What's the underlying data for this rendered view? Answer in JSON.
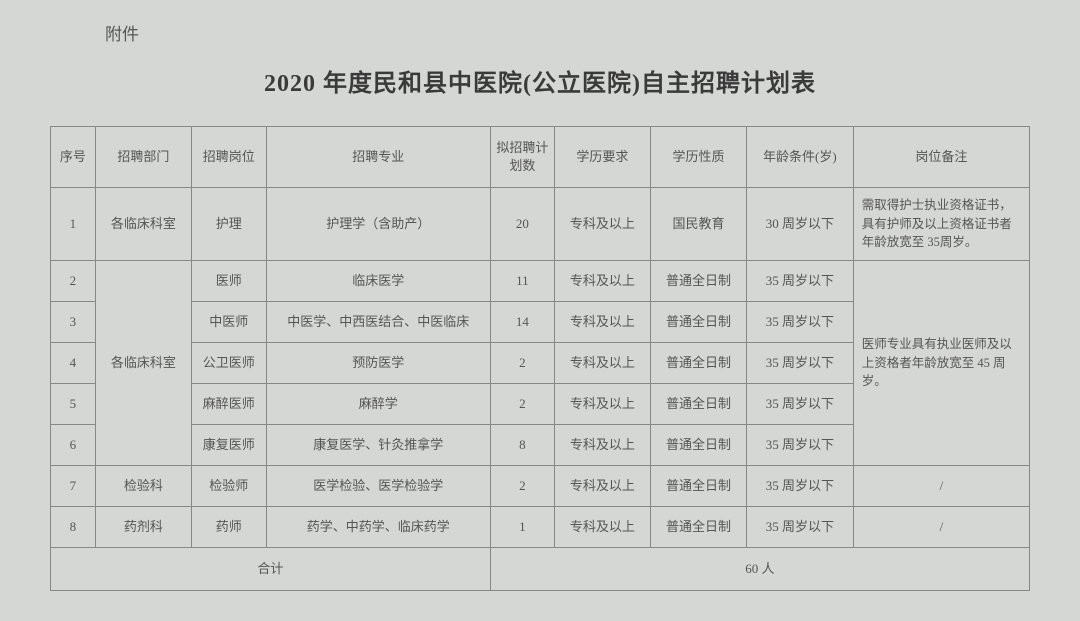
{
  "attachment_label": "附件",
  "title": "2020 年度民和县中医院(公立医院)自主招聘计划表",
  "headers": {
    "seq": "序号",
    "dept": "招聘部门",
    "position": "招聘岗位",
    "major": "招聘专业",
    "count": "拟招聘计划数",
    "edu_req": "学历要求",
    "edu_nature": "学历性质",
    "age": "年龄条件(岁)",
    "note": "岗位备注"
  },
  "rows": [
    {
      "seq": "1",
      "dept": "各临床科室",
      "position": "护理",
      "major": "护理学（含助产）",
      "count": "20",
      "edu_req": "专科及以上",
      "edu_nature": "国民教育",
      "age": "30 周岁以下"
    },
    {
      "seq": "2",
      "dept": "各临床科室",
      "position": "医师",
      "major": "临床医学",
      "count": "11",
      "edu_req": "专科及以上",
      "edu_nature": "普通全日制",
      "age": "35 周岁以下"
    },
    {
      "seq": "3",
      "position": "中医师",
      "major": "中医学、中西医结合、中医临床",
      "count": "14",
      "edu_req": "专科及以上",
      "edu_nature": "普通全日制",
      "age": "35 周岁以下"
    },
    {
      "seq": "4",
      "position": "公卫医师",
      "major": "预防医学",
      "count": "2",
      "edu_req": "专科及以上",
      "edu_nature": "普通全日制",
      "age": "35 周岁以下"
    },
    {
      "seq": "5",
      "position": "麻醉医师",
      "major": "麻醉学",
      "count": "2",
      "edu_req": "专科及以上",
      "edu_nature": "普通全日制",
      "age": "35 周岁以下"
    },
    {
      "seq": "6",
      "position": "康复医师",
      "major": "康复医学、针灸推拿学",
      "count": "8",
      "edu_req": "专科及以上",
      "edu_nature": "普通全日制",
      "age": "35 周岁以下"
    },
    {
      "seq": "7",
      "dept": "检验科",
      "position": "检验师",
      "major": "医学检验、医学检验学",
      "count": "2",
      "edu_req": "专科及以上",
      "edu_nature": "普通全日制",
      "age": "35 周岁以下",
      "note": "/"
    },
    {
      "seq": "8",
      "dept": "药剂科",
      "position": "药师",
      "major": "药学、中药学、临床药学",
      "count": "1",
      "edu_req": "专科及以上",
      "edu_nature": "普通全日制",
      "age": "35 周岁以下",
      "note": "/"
    }
  ],
  "note1": "需取得护士执业资格证书，具有护师及以上资格证书者年龄放宽至 35周岁。",
  "note2": "医师专业具有执业医师及以上资格者年龄放宽至 45 周岁。",
  "total_label": "合计",
  "total_value": "60 人"
}
